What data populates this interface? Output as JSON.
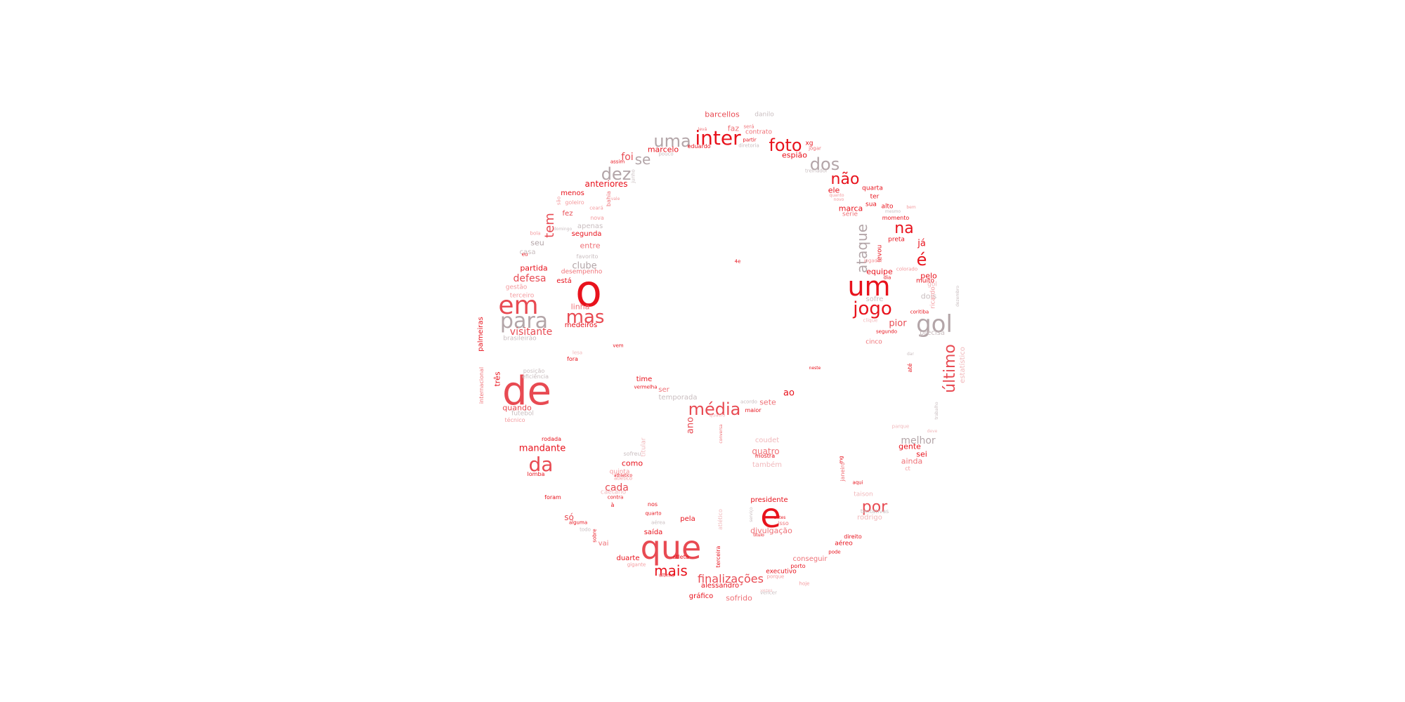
{
  "words": [
    {
      "t": "o",
      "c": "r"
    },
    {
      "t": "de",
      "c": "rl"
    },
    {
      "t": "que",
      "c": "rl"
    },
    {
      "t": "e",
      "c": "r"
    },
    {
      "t": "um",
      "c": "r"
    },
    {
      "t": "em",
      "c": "rl"
    },
    {
      "t": "para",
      "c": "g"
    },
    {
      "t": "gol",
      "c": "g"
    },
    {
      "t": "mas",
      "c": "rl"
    },
    {
      "t": "jogo",
      "c": "r"
    },
    {
      "t": "da",
      "c": "rl"
    },
    {
      "t": "média",
      "c": "rl"
    },
    {
      "t": "inter",
      "c": "r"
    },
    {
      "t": "uma",
      "c": "g"
    },
    {
      "t": "foto",
      "c": "r"
    },
    {
      "t": "dez",
      "c": "g"
    },
    {
      "t": "dos",
      "c": "g"
    },
    {
      "t": "não",
      "c": "r"
    },
    {
      "t": "na",
      "c": "r"
    },
    {
      "t": "por",
      "c": "rl"
    },
    {
      "t": "é",
      "c": "r"
    },
    {
      "t": "último",
      "c": "rl"
    },
    {
      "t": "ataque",
      "c": "g"
    },
    {
      "t": "mais",
      "c": "r"
    },
    {
      "t": "finalizações",
      "c": "rl"
    },
    {
      "t": "tem",
      "c": "rl"
    },
    {
      "t": "se",
      "c": "g"
    },
    {
      "t": "foi",
      "c": "rl"
    },
    {
      "t": "visitante",
      "c": "rl"
    },
    {
      "t": "defesa",
      "c": "rl"
    },
    {
      "t": "anteriores",
      "c": "r"
    },
    {
      "t": "mandante",
      "c": "r"
    },
    {
      "t": "cada",
      "c": "rl"
    },
    {
      "t": "quatro",
      "c": "rm"
    },
    {
      "t": "melhor",
      "c": "g"
    },
    {
      "t": "ao",
      "c": "r"
    },
    {
      "t": "pior",
      "c": "rl"
    },
    {
      "t": "barcellos",
      "c": "rl"
    },
    {
      "t": "clube",
      "c": "g"
    },
    {
      "t": "partida",
      "c": "r"
    },
    {
      "t": "marcelo",
      "c": "r"
    },
    {
      "t": "espião",
      "c": "r"
    },
    {
      "t": "faz",
      "c": "rm"
    },
    {
      "t": "marca",
      "c": "r"
    },
    {
      "t": "equipe",
      "c": "r"
    },
    {
      "t": "pelo",
      "c": "r"
    },
    {
      "t": "já",
      "c": "r"
    },
    {
      "t": "dois",
      "c": "gl"
    },
    {
      "t": "sofre",
      "c": "gl"
    },
    {
      "t": "ano",
      "c": "rl"
    },
    {
      "t": "só",
      "c": "rl"
    },
    {
      "t": "como",
      "c": "r"
    },
    {
      "t": "divulgação",
      "c": "rm"
    },
    {
      "t": "sofrido",
      "c": "rm"
    },
    {
      "t": "gráfico",
      "c": "r"
    },
    {
      "t": "alessandro",
      "c": "r"
    },
    {
      "t": "presidente",
      "c": "r"
    },
    {
      "t": "sete",
      "c": "rm"
    },
    {
      "t": "linha",
      "c": "rm"
    },
    {
      "t": "medeiros",
      "c": "r"
    },
    {
      "t": "quando",
      "c": "rl"
    },
    {
      "t": "três",
      "c": "r"
    },
    {
      "t": "seu",
      "c": "g"
    },
    {
      "t": "casa",
      "c": "gl"
    },
    {
      "t": "entre",
      "c": "rm"
    },
    {
      "t": "segunda",
      "c": "r"
    },
    {
      "t": "apenas",
      "c": "gl"
    },
    {
      "t": "está",
      "c": "r"
    },
    {
      "t": "menos",
      "c": "r"
    },
    {
      "t": "fez",
      "c": "rl"
    },
    {
      "t": "goleiro",
      "c": "p"
    },
    {
      "t": "nova",
      "c": "p"
    },
    {
      "t": "brasileirão",
      "c": "gl"
    },
    {
      "t": "gestão",
      "c": "p"
    },
    {
      "t": "terceiro",
      "c": "p"
    },
    {
      "t": "desempenho",
      "c": "rm"
    },
    {
      "t": "favorito",
      "c": "gl"
    },
    {
      "t": "palmeiras",
      "c": "r"
    },
    {
      "t": "internacional",
      "c": "rm"
    },
    {
      "t": "eficiência",
      "c": "gl"
    },
    {
      "t": "posição",
      "c": "gl"
    },
    {
      "t": "futebol",
      "c": "gl"
    },
    {
      "t": "técnico",
      "c": "p"
    },
    {
      "t": "rodada",
      "c": "r"
    },
    {
      "t": "lomba",
      "c": "r"
    },
    {
      "t": "foram",
      "c": "r"
    },
    {
      "t": "alguma",
      "c": "r"
    },
    {
      "t": "todo",
      "c": "gl"
    },
    {
      "t": "sobre",
      "c": "r"
    },
    {
      "t": "vai",
      "c": "rm"
    },
    {
      "t": "time",
      "c": "r"
    },
    {
      "t": "vermelha",
      "c": "r"
    },
    {
      "t": "ser",
      "c": "rm"
    },
    {
      "t": "temporada",
      "c": "gl"
    },
    {
      "t": "acordo",
      "c": "gl"
    },
    {
      "t": "maior",
      "c": "r"
    },
    {
      "t": "coudet",
      "c": "pp"
    },
    {
      "t": "mostra",
      "c": "r"
    },
    {
      "t": "também",
      "c": "pp"
    },
    {
      "t": "titular",
      "c": "pp"
    },
    {
      "t": "sofreu",
      "c": "gl"
    },
    {
      "t": "quinta",
      "c": "p"
    },
    {
      "t": "atlético",
      "c": "p"
    },
    {
      "t": "caetano",
      "c": "pp"
    },
    {
      "t": "contra",
      "c": "r"
    },
    {
      "t": "à",
      "c": "r"
    },
    {
      "t": "nos",
      "c": "r"
    },
    {
      "t": "quarto",
      "c": "r"
    },
    {
      "t": "aérea",
      "c": "gl"
    },
    {
      "t": "pela",
      "c": "r"
    },
    {
      "t": "saída",
      "c": "r"
    },
    {
      "t": "duarte",
      "c": "r"
    },
    {
      "t": "atleta",
      "c": "r"
    },
    {
      "t": "gigante",
      "c": "p"
    },
    {
      "t": "última",
      "c": "r"
    },
    {
      "t": "executivo",
      "c": "r"
    },
    {
      "t": "porque",
      "c": "p"
    },
    {
      "t": "conseguir",
      "c": "rm"
    },
    {
      "t": "porto",
      "c": "r"
    },
    {
      "t": "pode",
      "c": "r"
    },
    {
      "t": "aéreo",
      "c": "r"
    },
    {
      "t": "direito",
      "c": "r"
    },
    {
      "t": "hoje",
      "c": "p"
    },
    {
      "t": "vencer",
      "c": "gl"
    },
    {
      "t": "rodrigo",
      "c": "pp"
    },
    {
      "t": "tentativas",
      "c": "gl"
    },
    {
      "t": "taison",
      "c": "pp"
    },
    {
      "t": "aqui",
      "c": "r"
    },
    {
      "t": "janeiro",
      "c": "rm"
    },
    {
      "t": "mg",
      "c": "r"
    },
    {
      "t": "gente",
      "c": "r"
    },
    {
      "t": "sei",
      "c": "r"
    },
    {
      "t": "ainda",
      "c": "rm"
    },
    {
      "t": "ct",
      "c": "p"
    },
    {
      "t": "parque",
      "c": "pp"
    },
    {
      "t": "deve",
      "c": "pp"
    },
    {
      "t": "até",
      "c": "r"
    },
    {
      "t": "estatístico",
      "c": "pp"
    },
    {
      "t": "cinco",
      "c": "rm"
    },
    {
      "t": "segundo",
      "c": "r"
    },
    {
      "t": "precisa",
      "c": "gl"
    },
    {
      "t": "coritiba",
      "c": "r"
    },
    {
      "t": "clique",
      "c": "pp"
    },
    {
      "t": "muito",
      "c": "r"
    },
    {
      "t": "dia",
      "c": "r"
    },
    {
      "t": "colorado",
      "c": "p"
    },
    {
      "t": "levou",
      "c": "r"
    },
    {
      "t": "jogador",
      "c": "p"
    },
    {
      "t": "preta",
      "c": "r"
    },
    {
      "t": "momento",
      "c": "r"
    },
    {
      "t": "mesmo",
      "c": "gl"
    },
    {
      "t": "sua",
      "c": "r"
    },
    {
      "t": "alto",
      "c": "r"
    },
    {
      "t": "ter",
      "c": "r"
    },
    {
      "t": "série",
      "c": "rm"
    },
    {
      "t": "quarta",
      "c": "r"
    },
    {
      "t": "ele",
      "c": "r"
    },
    {
      "t": "quanto",
      "c": "p"
    },
    {
      "t": "novo",
      "c": "p"
    },
    {
      "t": "bem",
      "c": "p"
    },
    {
      "t": "treinador",
      "c": "gl"
    },
    {
      "t": "jogar",
      "c": "rm"
    },
    {
      "t": "xg",
      "c": "r"
    },
    {
      "t": "contrato",
      "c": "rm"
    },
    {
      "t": "diretoria",
      "c": "gl"
    },
    {
      "t": "partir",
      "c": "r"
    },
    {
      "t": "será",
      "c": "rm"
    },
    {
      "t": "danilo",
      "c": "gl"
    },
    {
      "t": "eduardo",
      "c": "r"
    },
    {
      "t": "pouco",
      "c": "gl"
    },
    {
      "t": "levá",
      "c": "rm"
    },
    {
      "t": "assim",
      "c": "r"
    },
    {
      "t": "junho",
      "c": "gl"
    },
    {
      "t": "bahia",
      "c": "rm"
    },
    {
      "t": "vale",
      "c": "p"
    },
    {
      "t": "ceará",
      "c": "p"
    },
    {
      "t": "são",
      "c": "p"
    },
    {
      "t": "bola",
      "c": "p"
    },
    {
      "t": "domingo",
      "c": "gl"
    },
    {
      "t": "eu",
      "c": "r"
    },
    {
      "t": "fora",
      "c": "r"
    },
    {
      "t": "lesa",
      "c": "pp"
    },
    {
      "t": "vem",
      "c": "r"
    },
    {
      "t": "4e",
      "c": "r"
    },
    {
      "t": "neste",
      "c": "r"
    },
    {
      "t": "quatro",
      "c": "pp"
    },
    {
      "t": "conversa",
      "c": "rm"
    },
    {
      "t": "serviço",
      "c": "gl"
    },
    {
      "t": "antes",
      "c": "r"
    },
    {
      "t": "isso",
      "c": "rm"
    },
    {
      "t": "título",
      "c": "r"
    },
    {
      "t": "terceira",
      "c": "r"
    },
    {
      "t": "atlético",
      "c": "pp"
    },
    {
      "t": "dezembro",
      "c": "gl"
    },
    {
      "t": "ricardo",
      "c": "p"
    },
    {
      "t": "trabalho",
      "c": "gl"
    },
    {
      "t": "vezes",
      "c": "pp"
    },
    {
      "t": "gol",
      "c": "pp"
    },
    {
      "t": "dar",
      "c": "gl"
    },
    {
      "t": "athletico",
      "c": "r"
    }
  ]
}
